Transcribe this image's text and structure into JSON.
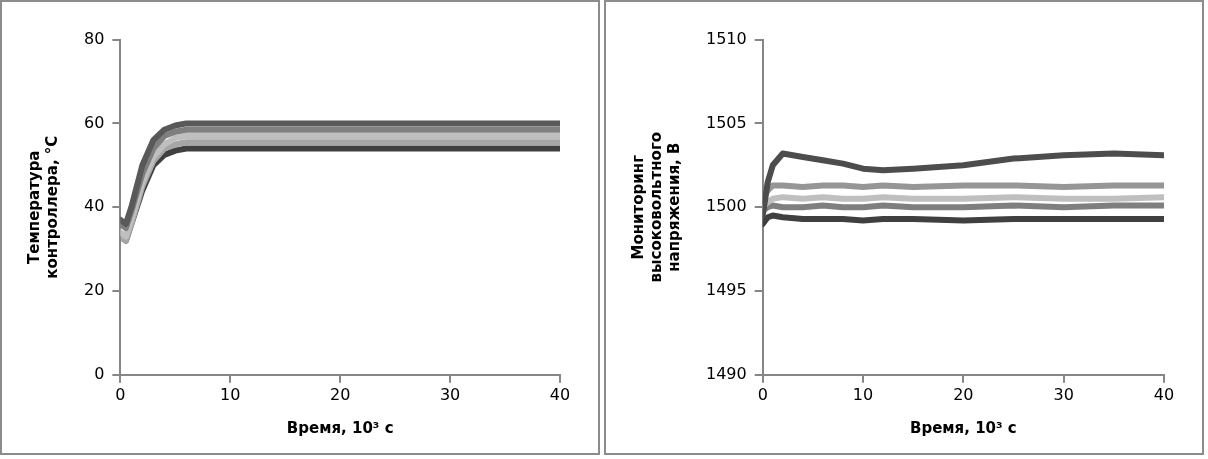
{
  "chart_data": [
    {
      "type": "line",
      "ylabel": "Температура контроллера, °С",
      "xlabel": "Время, 10³ с",
      "x": [
        0,
        0.5,
        1,
        2,
        3,
        4,
        5,
        6,
        10,
        20,
        30,
        40
      ],
      "xlim": [
        0,
        40
      ],
      "xticks": [
        0,
        10,
        20,
        30,
        40
      ],
      "ylim": [
        0,
        80
      ],
      "yticks": [
        0,
        20,
        40,
        60,
        80
      ],
      "grid": false,
      "legend": false,
      "marker": "none",
      "line_style": "solid",
      "series": [
        {
          "color": "#595959",
          "values": [
            37,
            36,
            40,
            50,
            56,
            58.5,
            59.5,
            60,
            60,
            60,
            60,
            60
          ]
        },
        {
          "color": "#7f7f7f",
          "values": [
            36,
            35,
            39,
            48,
            54,
            57,
            58,
            58.5,
            58.5,
            58.5,
            58.5,
            58.5
          ]
        },
        {
          "color": "#bfbfbf",
          "values": [
            34,
            33,
            37,
            46,
            52,
            55,
            56.5,
            57,
            57,
            57,
            57,
            57
          ]
        },
        {
          "color": "#a6a6a6",
          "values": [
            33,
            32,
            36,
            45,
            51,
            54,
            55,
            55.5,
            55.5,
            55.5,
            55.5,
            55.5
          ]
        },
        {
          "color": "#404040",
          "values": [
            33,
            32,
            36,
            44,
            50,
            52.5,
            53.5,
            54,
            54,
            54,
            54,
            54
          ]
        }
      ]
    },
    {
      "type": "line",
      "ylabel": "Мониторинг высоковольтного напряжения, В",
      "xlabel": "Время, 10³ с",
      "x": [
        0,
        0.5,
        1,
        2,
        4,
        6,
        8,
        10,
        12,
        15,
        20,
        25,
        30,
        35,
        40
      ],
      "xlim": [
        0,
        40
      ],
      "xticks": [
        0,
        10,
        20,
        30,
        40
      ],
      "ylim": [
        1490,
        1510
      ],
      "yticks": [
        1490,
        1495,
        1500,
        1505,
        1510
      ],
      "grid": false,
      "legend": false,
      "marker": "none",
      "line_style": "solid",
      "series": [
        {
          "color": "#4d4d4d",
          "values": [
            1499.5,
            1501.5,
            1502.5,
            1503.2,
            1503,
            1502.8,
            1502.6,
            1502.3,
            1502.2,
            1502.3,
            1502.5,
            1502.9,
            1503.1,
            1503.2,
            1503.1
          ]
        },
        {
          "color": "#969696",
          "values": [
            1500.5,
            1501,
            1501.3,
            1501.3,
            1501.2,
            1501.3,
            1501.3,
            1501.2,
            1501.3,
            1501.2,
            1501.3,
            1501.3,
            1501.2,
            1501.3,
            1501.3
          ]
        },
        {
          "color": "#bfbfbf",
          "values": [
            1500,
            1500.3,
            1500.5,
            1500.6,
            1500.5,
            1500.6,
            1500.5,
            1500.5,
            1500.6,
            1500.5,
            1500.5,
            1500.6,
            1500.5,
            1500.5,
            1500.6
          ]
        },
        {
          "color": "#7f7f7f",
          "values": [
            1499.8,
            1500,
            1500.1,
            1500,
            1500,
            1500.1,
            1500,
            1500,
            1500.1,
            1500,
            1500,
            1500.1,
            1500,
            1500.1,
            1500.1
          ]
        },
        {
          "color": "#404040",
          "values": [
            1499,
            1499.4,
            1499.5,
            1499.4,
            1499.3,
            1499.3,
            1499.3,
            1499.2,
            1499.3,
            1499.3,
            1499.2,
            1499.3,
            1499.3,
            1499.3,
            1499.3
          ]
        }
      ]
    }
  ]
}
